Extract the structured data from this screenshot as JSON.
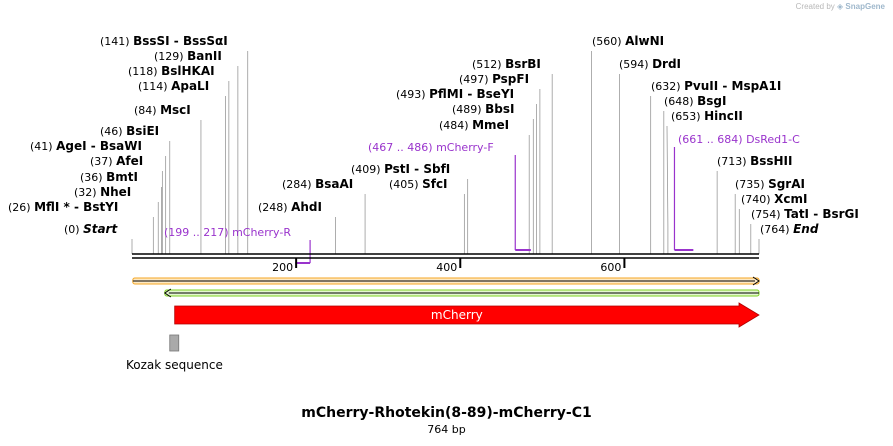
{
  "credit": {
    "prefix": "Created by",
    "brand": "SnapGene"
  },
  "title": "mCherry-Rhotekin(8-89)-mCherry-C1",
  "length_label": "764 bp",
  "total_bp": 764,
  "colors": {
    "primer": "#9933cc",
    "cds": "#ff0000",
    "orf_forward": "#f5a623",
    "orf_reverse": "#7ed321",
    "kozak": "#aaaaaa"
  },
  "sites": [
    {
      "id": "start",
      "pos_label": "(0)",
      "name": "Start",
      "pos": 0,
      "italic": true
    },
    {
      "id": "mfli",
      "pos_label": "(26)",
      "name": "MflI * - BstYI",
      "pos": 26
    },
    {
      "id": "ndei",
      "pos_label": "(32)",
      "name": "NheI",
      "pos": 32
    },
    {
      "id": "bmti",
      "pos_label": "(36)",
      "name": "BmtI",
      "pos": 36
    },
    {
      "id": "afei",
      "pos_label": "(37)",
      "name": "AfeI",
      "pos": 37
    },
    {
      "id": "agei",
      "pos_label": "(41)",
      "name": "AgeI - BsaWI",
      "pos": 41
    },
    {
      "id": "bsiei",
      "pos_label": "(46)",
      "name": "BsiEI",
      "pos": 46
    },
    {
      "id": "msci",
      "pos_label": "(84)",
      "name": "MscI",
      "pos": 84
    },
    {
      "id": "apali",
      "pos_label": "(114)",
      "name": "ApaLI",
      "pos": 114
    },
    {
      "id": "bslhkai",
      "pos_label": "(118)",
      "name": "BslHKAI",
      "pos": 118
    },
    {
      "id": "banii",
      "pos_label": "(129)",
      "name": "BanII",
      "pos": 129
    },
    {
      "id": "bsssi",
      "pos_label": "(141)",
      "name": "BssSI - BssSαI",
      "pos": 141
    },
    {
      "id": "ahdi",
      "pos_label": "(248)",
      "name": "AhdI",
      "pos": 248
    },
    {
      "id": "bsaai",
      "pos_label": "(284)",
      "name": "BsaAI",
      "pos": 284
    },
    {
      "id": "sfci",
      "pos_label": "(405)",
      "name": "SfcI",
      "pos": 405
    },
    {
      "id": "psti",
      "pos_label": "(409)",
      "name": "PstI - SbfI",
      "pos": 409
    },
    {
      "id": "mmei",
      "pos_label": "(484)",
      "name": "MmeI",
      "pos": 484
    },
    {
      "id": "bbsi",
      "pos_label": "(489)",
      "name": "BbsI",
      "pos": 489
    },
    {
      "id": "pflmi",
      "pos_label": "(493)",
      "name": "PflMI - BseYI",
      "pos": 493
    },
    {
      "id": "pspfi",
      "pos_label": "(497)",
      "name": "PspFI",
      "pos": 497
    },
    {
      "id": "bsrbi",
      "pos_label": "(512)",
      "name": "BsrBI",
      "pos": 512
    },
    {
      "id": "alwni",
      "pos_label": "(560)",
      "name": "AlwNI",
      "pos": 560
    },
    {
      "id": "drdi",
      "pos_label": "(594)",
      "name": "DrdI",
      "pos": 594
    },
    {
      "id": "pvuii",
      "pos_label": "(632)",
      "name": "PvuII - MspA1I",
      "pos": 632
    },
    {
      "id": "bsgi",
      "pos_label": "(648)",
      "name": "BsgI",
      "pos": 648
    },
    {
      "id": "hincii",
      "pos_label": "(653)",
      "name": "HincII",
      "pos": 653
    },
    {
      "id": "bsshii",
      "pos_label": "(713)",
      "name": "BssHII",
      "pos": 713
    },
    {
      "id": "sgrai",
      "pos_label": "(735)",
      "name": "SgrAI",
      "pos": 735
    },
    {
      "id": "xcmi",
      "pos_label": "(740)",
      "name": "XcmI",
      "pos": 740
    },
    {
      "id": "tati",
      "pos_label": "(754)",
      "name": "TatI - BsrGI",
      "pos": 754
    },
    {
      "id": "end",
      "pos_label": "(764)",
      "name": "End",
      "pos": 764,
      "italic": true
    }
  ],
  "primers": [
    {
      "id": "mcherry-r",
      "range_label": "(199 .. 217)",
      "name": "mCherry-R",
      "start": 199,
      "end": 217,
      "direction": "reverse"
    },
    {
      "id": "mcherry-f",
      "range_label": "(467 .. 486)",
      "name": "mCherry-F",
      "start": 467,
      "end": 486,
      "direction": "forward"
    },
    {
      "id": "dsred1-c",
      "range_label": "(661 .. 684)",
      "name": "DsRed1-C",
      "start": 661,
      "end": 684,
      "direction": "forward"
    }
  ],
  "ruler_ticks": [
    {
      "label": "200",
      "value": 200
    },
    {
      "label": "400",
      "value": 400
    },
    {
      "label": "600",
      "value": 600
    }
  ],
  "features": {
    "orf_forward": {
      "start": 1,
      "end": 764
    },
    "orf_reverse": {
      "start": 40,
      "end": 764
    },
    "cds": {
      "name": "mCherry",
      "start": 52,
      "end": 764
    },
    "kozak": {
      "name": "Kozak sequence",
      "start": 46,
      "end": 56
    }
  }
}
